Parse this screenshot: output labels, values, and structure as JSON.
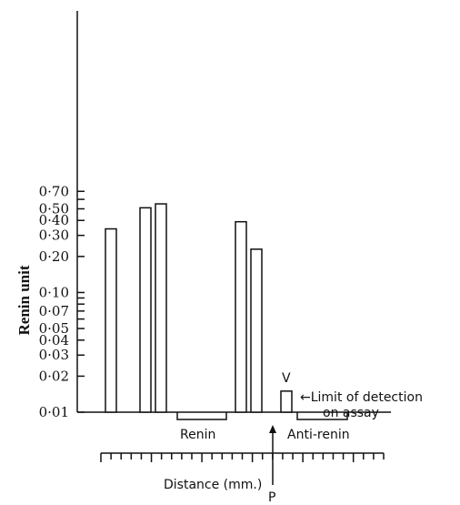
{
  "chart_data": {
    "type": "bar",
    "ylabel": "Renin unit",
    "xlabel": "Distance (mm.)",
    "yscale": "log",
    "ylim": [
      0.01,
      0.7
    ],
    "y_ticks": [
      {
        "value": 0.7,
        "label": "0·70"
      },
      {
        "value": 0.5,
        "label": "0·50"
      },
      {
        "value": 0.4,
        "label": "0·40"
      },
      {
        "value": 0.3,
        "label": "0·30"
      },
      {
        "value": 0.2,
        "label": "0·20"
      },
      {
        "value": 0.1,
        "label": "0·10"
      },
      {
        "value": 0.07,
        "label": "0·07"
      },
      {
        "value": 0.05,
        "label": "0·05"
      },
      {
        "value": 0.04,
        "label": "0·04"
      },
      {
        "value": 0.03,
        "label": "0·03"
      },
      {
        "value": 0.02,
        "label": "0·02"
      },
      {
        "value": 0.01,
        "label": "0·01"
      }
    ],
    "y_minor_ticks": [
      0.6,
      0.09,
      0.08,
      0.06
    ],
    "bars": [
      {
        "value": 0.34
      },
      {
        "value": 0.51
      },
      {
        "value": 0.55
      },
      {
        "value": 0.39
      },
      {
        "value": 0.23
      },
      {
        "value": 0.015,
        "label": "V"
      }
    ],
    "annotations": {
      "limit": "←Limit of detection\non assay",
      "renin": "Renin",
      "anti_renin": "Anti-renin",
      "point": "P"
    }
  }
}
